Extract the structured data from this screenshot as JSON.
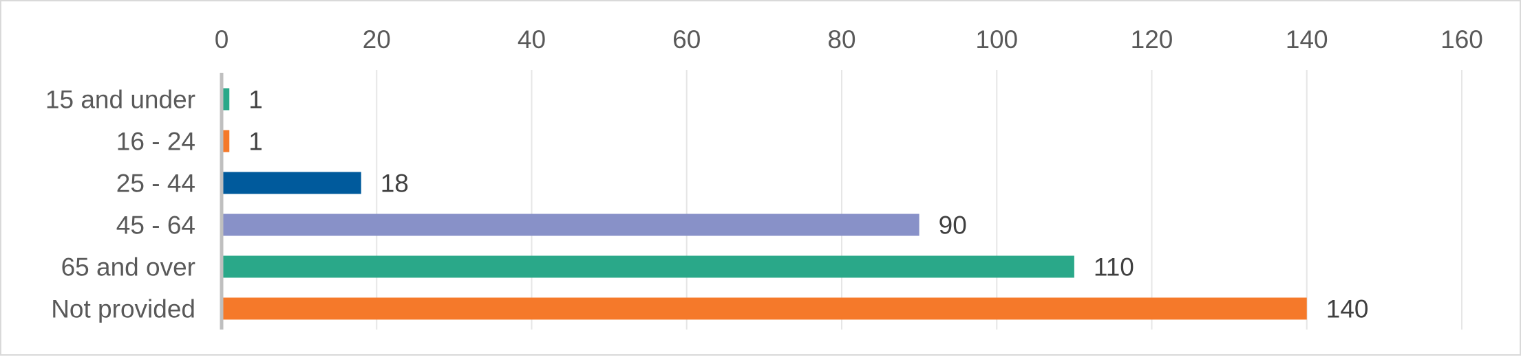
{
  "chart_data": {
    "type": "bar",
    "orientation": "horizontal",
    "title": "",
    "xlabel": "",
    "ylabel": "",
    "categories": [
      "15 and under",
      "16 - 24",
      "25 - 44",
      "45 - 64",
      "65 and over",
      "Not provided"
    ],
    "values": [
      1,
      1,
      18,
      90,
      110,
      140
    ],
    "data_labels": [
      "1",
      "1",
      "18",
      "90",
      "110",
      "140"
    ],
    "bar_colors": [
      "#2aa889",
      "#f5792a",
      "#005a9c",
      "#8891c8",
      "#2aa889",
      "#f5792a"
    ],
    "xlim": [
      0,
      160
    ],
    "xticks": [
      0,
      20,
      40,
      60,
      80,
      100,
      120,
      140,
      160
    ],
    "xtick_labels": [
      "0",
      "20",
      "40",
      "60",
      "80",
      "100",
      "120",
      "140",
      "160"
    ],
    "x_axis_position": "top",
    "grid": true,
    "legend": "none"
  }
}
